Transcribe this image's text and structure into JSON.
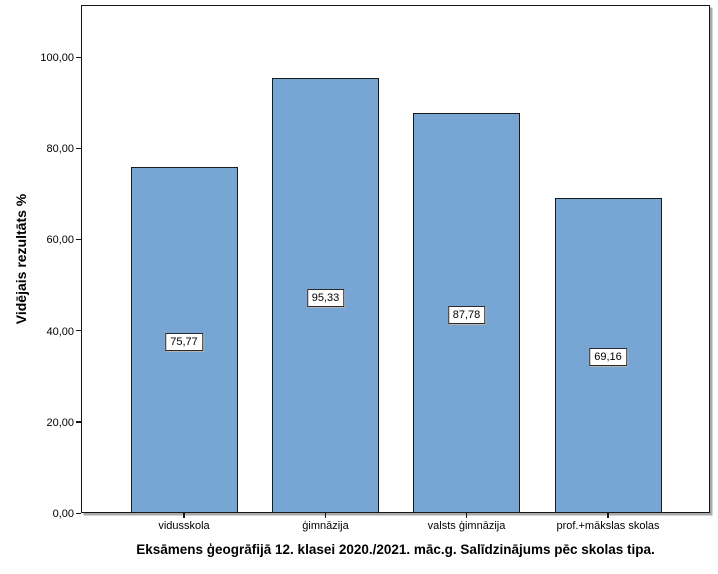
{
  "figure": {
    "title": "Eksāmens ģeogrāfijā 12. klasei 2020./2021. māc.g. Salīdzinājums pēc skolas tipa.",
    "y_axis_label": "Vidējais rezultāts %"
  },
  "chart_data": {
    "type": "bar",
    "categories": [
      "vidusskola",
      "ģimnāzija",
      "valsts ģimnāzija",
      "prof.+mākslas skolas"
    ],
    "values": [
      75.77,
      95.33,
      87.78,
      69.16
    ],
    "value_labels": [
      "75,77",
      "95,33",
      "87,78",
      "69,16"
    ],
    "title": "Eksāmens ģeogrāfijā 12. klasei 2020./2021. māc.g. Salīdzinājums pēc skolas tipa.",
    "xlabel": "",
    "ylabel": "Vidējais rezultāts %",
    "y_tick_values": [
      0,
      20,
      40,
      60,
      80,
      100
    ],
    "y_tick_labels": [
      "0,00",
      "20,00",
      "40,00",
      "60,00",
      "80,00",
      "100,00"
    ],
    "ylim": [
      0,
      111.4
    ],
    "grid": false,
    "legend": false,
    "bar_color": "#78A6D4",
    "bar_border_color": "#1a1a1a",
    "value_label_style": "boxed-inside-bar"
  }
}
